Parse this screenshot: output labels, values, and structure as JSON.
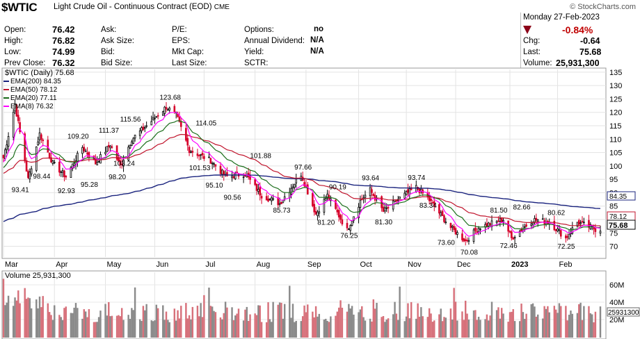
{
  "header": {
    "symbol": "$WTIC",
    "description": "Light Crude Oil - Continuous Contract (EOD)",
    "exchange": "CME",
    "watermark": "© StockCharts.com",
    "date": "Monday  27-Feb-2023",
    "change_pct": "-0.84%",
    "fields": {
      "open_label": "Open:",
      "open": "76.42",
      "high_label": "High:",
      "high": "76.82",
      "low_label": "Low:",
      "low": "74.99",
      "prev_label": "Prev Close:",
      "prev": "76.32",
      "ask_label": "Ask:",
      "asksize_label": "Ask Size:",
      "bid_label": "Bid:",
      "bidsize_label": "Bid Size:",
      "pe_label": "P/E:",
      "eps_label": "EPS:",
      "mktcap_label": "Mkt Cap:",
      "lastsize_label": "Last Size:",
      "options_label": "Options:",
      "options": "no",
      "div_label": "Annual Dividend:",
      "div": "N/A",
      "yield_label": "Yield:",
      "yield": "N/A",
      "sctr_label": "SCTR:",
      "chg_label": "Chg:",
      "chg": "-0.64",
      "last_label": "Last:",
      "last": "75.68",
      "volume_label": "Volume:",
      "volume": "25,931,300"
    }
  },
  "legend": {
    "price": "$WTIC (Daily) 75.68",
    "ema200": "EMA(200) 84.35",
    "ema50": "EMA(50) 78.12",
    "ema20": "EMA(20) 77.11",
    "ema8": "EMA(8) 76.32",
    "volume": "Volume 25,931,300"
  },
  "colors": {
    "up": "#000000",
    "down": "#d6002a",
    "ema200": "#1a237e",
    "ema50": "#c0142c",
    "ema20": "#1b6e1b",
    "ema8": "#ff00ff",
    "vol_up": "#8a8a8a",
    "vol_down": "#d7707a"
  },
  "right_tags": {
    "ema200": "84.35",
    "ema50": "78.12",
    "price": "75.68",
    "volume": "25931300"
  },
  "chart_data": {
    "type": "candlestick",
    "y_axis": {
      "range": [
        66,
        136
      ],
      "ticks": [
        70,
        75,
        80,
        85,
        90,
        95,
        100,
        105,
        110,
        115,
        120,
        125,
        130,
        135
      ]
    },
    "x_ticks": [
      "Mar",
      "Apr",
      "May",
      "Jun",
      "Jul",
      "Aug",
      "Sep",
      "Oct",
      "Nov",
      "Dec",
      "2023",
      "Feb"
    ],
    "volume_axis": {
      "ticks": [
        "60M",
        "40M",
        "20M"
      ]
    },
    "price_labels": [
      "123.68",
      "115.56",
      "111.37",
      "109.20",
      "114.05",
      "103.24",
      "101.53",
      "101.88",
      "98.44",
      "93.41",
      "92.93",
      "95.28",
      "98.20",
      "95.10",
      "90.56",
      "97.66",
      "85.73",
      "90.19",
      "81.20",
      "93.64",
      "93.74",
      "76.25",
      "81.30",
      "83.34",
      "81.50",
      "82.66",
      "80.62",
      "73.60",
      "70.08",
      "72.46",
      "72.25"
    ],
    "price_series": [
      {
        "date": "2022-03-01",
        "value": 103
      },
      {
        "date": "2022-03-08",
        "value": 123
      },
      {
        "date": "2022-03-16",
        "value": 95
      },
      {
        "date": "2022-03-23",
        "value": 112
      },
      {
        "date": "2022-03-31",
        "value": 101
      },
      {
        "date": "2022-04-08",
        "value": 96
      },
      {
        "date": "2022-04-18",
        "value": 107
      },
      {
        "date": "2022-04-26",
        "value": 101
      },
      {
        "date": "2022-05-05",
        "value": 108
      },
      {
        "date": "2022-05-11",
        "value": 100
      },
      {
        "date": "2022-05-18",
        "value": 110
      },
      {
        "date": "2022-05-27",
        "value": 115
      },
      {
        "date": "2022-06-08",
        "value": 122
      },
      {
        "date": "2022-06-14",
        "value": 119
      },
      {
        "date": "2022-06-22",
        "value": 106
      },
      {
        "date": "2022-07-05",
        "value": 102
      },
      {
        "date": "2022-07-14",
        "value": 96
      },
      {
        "date": "2022-07-26",
        "value": 97
      },
      {
        "date": "2022-08-05",
        "value": 89
      },
      {
        "date": "2022-08-16",
        "value": 86
      },
      {
        "date": "2022-08-29",
        "value": 97
      },
      {
        "date": "2022-09-07",
        "value": 82
      },
      {
        "date": "2022-09-14",
        "value": 89
      },
      {
        "date": "2022-09-26",
        "value": 76
      },
      {
        "date": "2022-10-04",
        "value": 87
      },
      {
        "date": "2022-10-10",
        "value": 91
      },
      {
        "date": "2022-10-18",
        "value": 83
      },
      {
        "date": "2022-10-28",
        "value": 88
      },
      {
        "date": "2022-11-07",
        "value": 92
      },
      {
        "date": "2022-11-14",
        "value": 88
      },
      {
        "date": "2022-11-28",
        "value": 77
      },
      {
        "date": "2022-12-07",
        "value": 72
      },
      {
        "date": "2022-12-15",
        "value": 77
      },
      {
        "date": "2022-12-30",
        "value": 80
      },
      {
        "date": "2023-01-04",
        "value": 73
      },
      {
        "date": "2023-01-17",
        "value": 80
      },
      {
        "date": "2023-01-27",
        "value": 79
      },
      {
        "date": "2023-02-06",
        "value": 73
      },
      {
        "date": "2023-02-13",
        "value": 79
      },
      {
        "date": "2023-02-27",
        "value": 75.68
      }
    ]
  }
}
